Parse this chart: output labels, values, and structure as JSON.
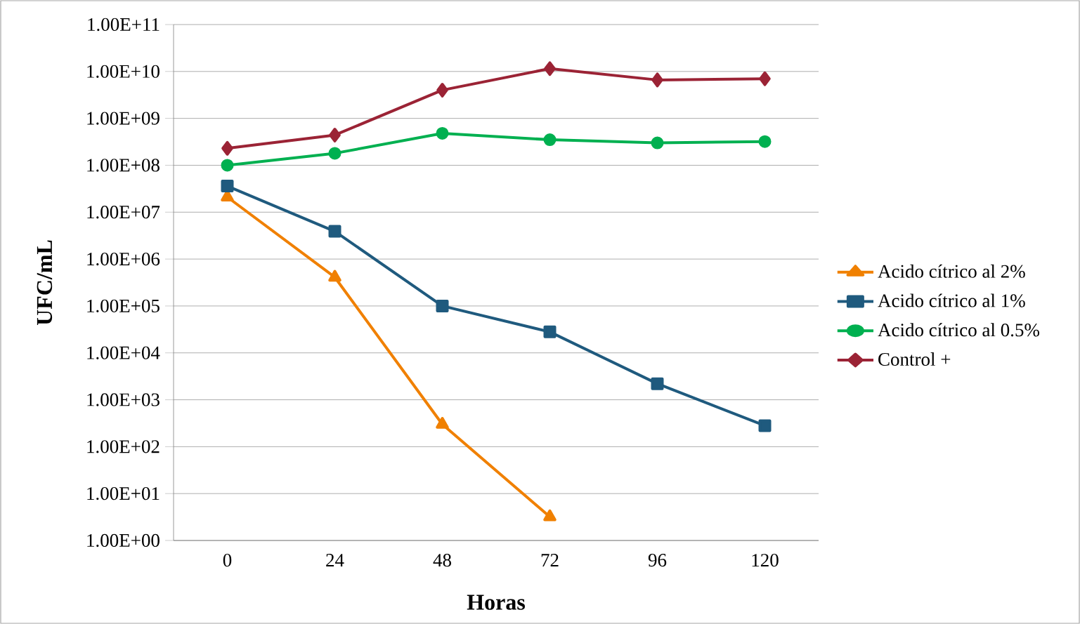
{
  "chart_data": {
    "type": "line",
    "xlabel": "Horas",
    "ylabel": "UFC/mL",
    "categories": [
      "0",
      "24",
      "48",
      "72",
      "96",
      "120"
    ],
    "log": true,
    "grid": "y",
    "legend": "right",
    "line_style": "solid",
    "ylim": [
      1,
      100000000000
    ],
    "yticks": [
      {
        "value": 1,
        "label": "1.00E+00"
      },
      {
        "value": 10,
        "label": "1.00E+01"
      },
      {
        "value": 100,
        "label": "1.00E+02"
      },
      {
        "value": 1000,
        "label": "1.00E+03"
      },
      {
        "value": 10000,
        "label": "1.00E+04"
      },
      {
        "value": 100000,
        "label": "1.00E+05"
      },
      {
        "value": 1000000,
        "label": "1.00E+06"
      },
      {
        "value": 10000000,
        "label": "1.00E+07"
      },
      {
        "value": 100000000,
        "label": "1.00E+08"
      },
      {
        "value": 1000000000,
        "label": "1.00E+09"
      },
      {
        "value": 10000000000,
        "label": "1.00E+10"
      },
      {
        "value": 100000000000,
        "label": "1.00E+11"
      }
    ],
    "series": [
      {
        "name": "Acido cítrico al 2%",
        "color": "#f08000",
        "marker": "triangle",
        "values": [
          21000000,
          410000,
          300,
          3.2,
          null,
          null
        ]
      },
      {
        "name": "Acido cítrico al 1%",
        "color": "#1f5a7e",
        "marker": "square",
        "values": [
          36000000,
          3900000,
          100000,
          28000,
          2200,
          280
        ]
      },
      {
        "name": "Acido cítrico al 0.5%",
        "color": "#00b050",
        "marker": "circle",
        "values": [
          100000000,
          180000000,
          480000000,
          350000000,
          300000000,
          320000000
        ]
      },
      {
        "name": "Control +",
        "color": "#9b2335",
        "marker": "diamond",
        "values": [
          230000000,
          440000000,
          4000000000,
          11500000000,
          6600000000,
          7000000000
        ]
      }
    ]
  }
}
